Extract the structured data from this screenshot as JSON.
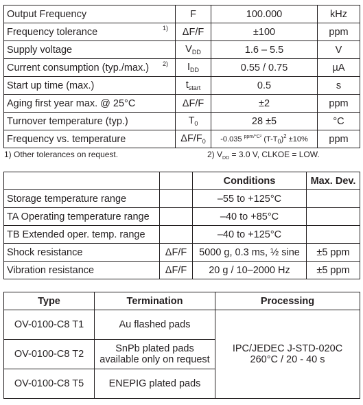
{
  "spec_table": {
    "rows": [
      {
        "param": "Output Frequency",
        "fn": "",
        "symbol": "F",
        "sym_sub": "",
        "value": "100.000",
        "unit": "kHz"
      },
      {
        "param": "Frequency tolerance",
        "fn": "1)",
        "symbol": "ΔF/F",
        "sym_sub": "",
        "value": "±100",
        "unit": "ppm"
      },
      {
        "param": "Supply voltage",
        "fn": "",
        "symbol": "V",
        "sym_sub": "DD",
        "value": "1.6 – 5.5",
        "unit": "V"
      },
      {
        "param": "Current consumption (typ./max.)",
        "fn": "2)",
        "symbol": "I",
        "sym_sub": "DD",
        "value": "0.55 / 0.75",
        "unit": "µA"
      },
      {
        "param": "Start up time (max.)",
        "fn": "",
        "symbol": "t",
        "sym_sub": "start",
        "value": "0.5",
        "unit": "s"
      },
      {
        "param": "Aging first year max. @ 25°C",
        "fn": "",
        "symbol": "ΔF/F",
        "sym_sub": "",
        "value": "±2",
        "unit": "ppm"
      },
      {
        "param": "Turnover temperature (typ.)",
        "fn": "",
        "symbol": "T",
        "sym_sub": "0",
        "value": "28 ±5",
        "unit": "°C"
      }
    ],
    "freq_temp": {
      "param": "Frequency vs. temperature",
      "symbol": "ΔF/F",
      "sym_sub": "0",
      "value_a": "-0.035 ",
      "value_unit": "ppm/°C²",
      "value_b": " (T-T",
      "value_b_sub": "0",
      "value_c": ")",
      "value_c_sup": "2",
      "value_d": " ±10%",
      "unit": "ppm"
    }
  },
  "notes": {
    "note1": "1) Other tolerances on request.",
    "note2_a": "2) V",
    "note2_sub": "DD",
    "note2_b": " = 3.0 V, CLKOE = LOW."
  },
  "env_table": {
    "headers": {
      "conditions": "Conditions",
      "max_dev": "Max. Dev."
    },
    "rows": [
      {
        "param": "Storage temperature range",
        "symbol": "",
        "condition": "–55 to +125°C",
        "dev": ""
      },
      {
        "param": "TA Operating temperature range",
        "symbol": "",
        "condition": "–40 to +85°C",
        "dev": ""
      },
      {
        "param": "TB Extended oper. temp. range",
        "symbol": "",
        "condition": "–40 to +125°C",
        "dev": ""
      },
      {
        "param": "Shock resistance",
        "symbol": "ΔF/F",
        "condition": "5000 g, 0.3 ms, ½ sine",
        "dev": "±5 ppm"
      },
      {
        "param": "Vibration resistance",
        "symbol": "ΔF/F",
        "condition": "20 g / 10–2000 Hz",
        "dev": "±5 ppm"
      }
    ]
  },
  "order_table": {
    "headers": {
      "type": "Type",
      "termination": "Termination",
      "processing": "Processing"
    },
    "rows": [
      {
        "type": "OV-0100-C8 T1",
        "termination_1": "Au flashed pads",
        "termination_2": ""
      },
      {
        "type": "OV-0100-C8 T2",
        "termination_1": "SnPb plated pads",
        "termination_2": "available only on request"
      },
      {
        "type": "OV-0100-C8 T5",
        "termination_1": "ENEPIG plated pads",
        "termination_2": ""
      }
    ],
    "processing_1": "IPC/JEDEC J-STD-020C",
    "processing_2": "260°C / 20 - 40 s"
  }
}
